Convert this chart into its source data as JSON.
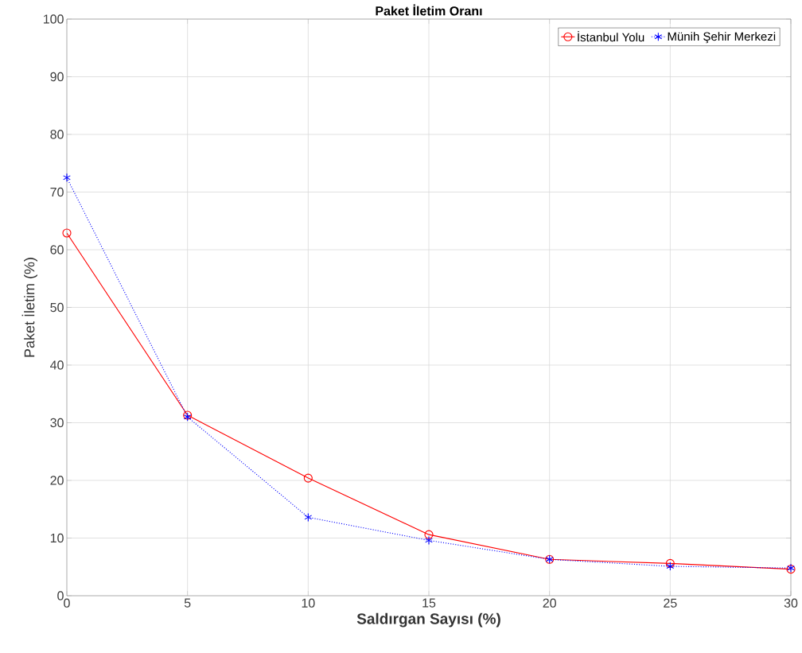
{
  "chart_data": {
    "type": "line",
    "title": "Paket İletim Oranı",
    "xlabel": "Saldırgan Sayısı (%)",
    "ylabel": "Paket İletim (%)",
    "x": [
      0,
      5,
      10,
      15,
      20,
      25,
      30
    ],
    "series": [
      {
        "name": "İstanbul Yolu",
        "color": "#ff0000",
        "marker": "circle",
        "line_style": "solid",
        "values": [
          62.9,
          31.3,
          20.4,
          10.6,
          6.3,
          5.6,
          4.6
        ]
      },
      {
        "name": "Münih Şehir Merkezi",
        "color": "#0000ff",
        "marker": "cross",
        "line_style": "dotted",
        "values": [
          72.5,
          31.0,
          13.6,
          9.6,
          6.3,
          5.1,
          4.8
        ]
      }
    ],
    "xlim": [
      0,
      30
    ],
    "ylim": [
      0,
      100
    ],
    "xticks": [
      0,
      5,
      10,
      15,
      20,
      25,
      30
    ],
    "yticks": [
      0,
      10,
      20,
      30,
      40,
      50,
      60,
      70,
      80,
      90,
      100
    ],
    "grid": true,
    "legend": "top right"
  }
}
